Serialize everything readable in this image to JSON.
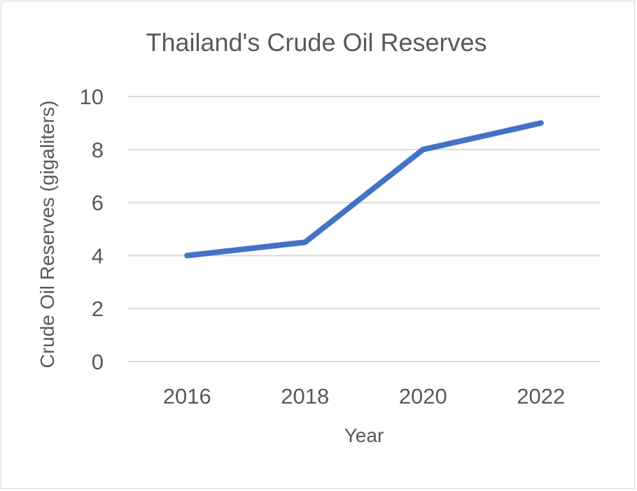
{
  "chart_data": {
    "type": "line",
    "title": "Thailand's Crude Oil Reserves",
    "xlabel": "Year",
    "ylabel": "Crude Oil Reserves (gigaliters)",
    "categories": [
      "2016",
      "2018",
      "2020",
      "2022"
    ],
    "series": [
      {
        "values": [
          4.0,
          4.5,
          8.0,
          9.0
        ]
      }
    ],
    "ylim": [
      0,
      10
    ],
    "yticks": [
      0,
      2,
      4,
      6,
      8,
      10
    ],
    "grid": true,
    "legend": "none",
    "colors": {
      "line": "#4472c4",
      "grid": "#d9d9d9",
      "text": "#595959"
    }
  }
}
